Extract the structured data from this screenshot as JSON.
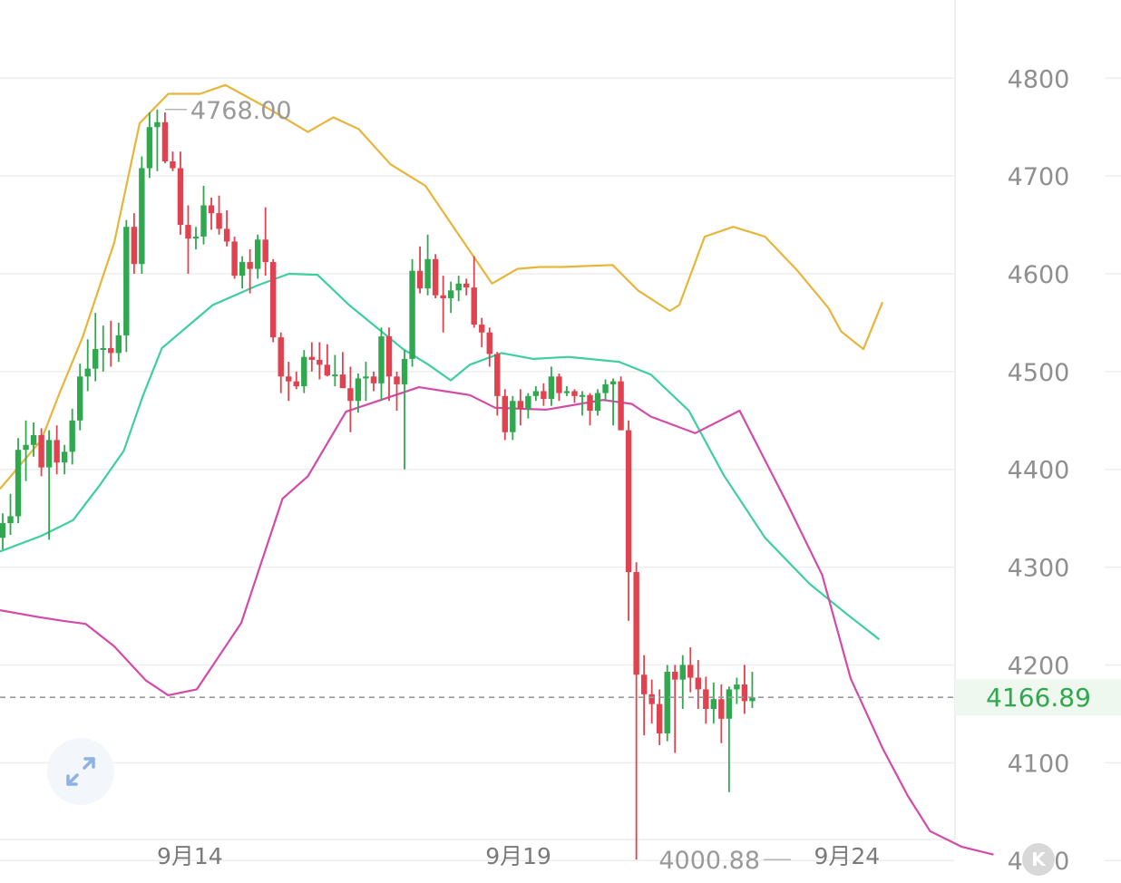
{
  "chart_data": {
    "type": "candlestick",
    "y_ticks": [
      "4800",
      "4700",
      "4600",
      "4500",
      "4400",
      "4300",
      "4200",
      "4100",
      "4000"
    ],
    "y_tick_values": [
      4800,
      4700,
      4600,
      4500,
      4400,
      4300,
      4200,
      4100,
      4000
    ],
    "ylim": [
      3977,
      4880
    ],
    "x_labels": [
      {
        "label": "9月14",
        "index": 26
      },
      {
        "label": "9月19",
        "index": 71
      },
      {
        "label": "9月24",
        "index": 116
      }
    ],
    "high_annotation": {
      "label": "4768.00",
      "value": 4768.0,
      "index": 21
    },
    "low_annotation": {
      "label": "4000.88",
      "value": 4000.88,
      "index": 102
    },
    "current_price": {
      "label": "4166.89",
      "value": 4166.89
    },
    "grid": true,
    "colors": {
      "up": "#2fa84f",
      "down": "#e0424f",
      "upper_band": "#e7b53a",
      "middle_band": "#3ccf9f",
      "lower_band": "#d44aa8",
      "price_line": "#9a9a9a",
      "grid": "#eeeeee"
    },
    "candles": [
      [
        4330,
        4355,
        4318,
        4345
      ],
      [
        4345,
        4375,
        4333,
        4352
      ],
      [
        4352,
        4432,
        4345,
        4420
      ],
      [
        4420,
        4450,
        4388,
        4425
      ],
      [
        4425,
        4448,
        4413,
        4435
      ],
      [
        4435,
        4442,
        4393,
        4402
      ],
      [
        4402,
        4440,
        4328,
        4430
      ],
      [
        4430,
        4445,
        4395,
        4407
      ],
      [
        4407,
        4425,
        4395,
        4418
      ],
      [
        4418,
        4462,
        4405,
        4450
      ],
      [
        4450,
        4508,
        4440,
        4495
      ],
      [
        4495,
        4533,
        4480,
        4503
      ],
      [
        4503,
        4560,
        4490,
        4523
      ],
      [
        4523,
        4547,
        4500,
        4524
      ],
      [
        4524,
        4552,
        4505,
        4519
      ],
      [
        4519,
        4550,
        4510,
        4537
      ],
      [
        4537,
        4655,
        4520,
        4648
      ],
      [
        4648,
        4662,
        4600,
        4610
      ],
      [
        4610,
        4720,
        4600,
        4708
      ],
      [
        4708,
        4765,
        4698,
        4750
      ],
      [
        4750,
        4768,
        4705,
        4755
      ],
      [
        4755,
        4765,
        4713,
        4715
      ],
      [
        4715,
        4725,
        4705,
        4708
      ],
      [
        4708,
        4725,
        4640,
        4650
      ],
      [
        4650,
        4670,
        4600,
        4636
      ],
      [
        4636,
        4648,
        4625,
        4638
      ],
      [
        4638,
        4690,
        4630,
        4670
      ],
      [
        4670,
        4678,
        4645,
        4662
      ],
      [
        4662,
        4680,
        4640,
        4646
      ],
      [
        4646,
        4665,
        4628,
        4633
      ],
      [
        4633,
        4638,
        4595,
        4598
      ],
      [
        4598,
        4618,
        4585,
        4612
      ],
      [
        4612,
        4625,
        4580,
        4605
      ],
      [
        4605,
        4640,
        4595,
        4635
      ],
      [
        4635,
        4668,
        4598,
        4612
      ],
      [
        4612,
        4615,
        4530,
        4535
      ],
      [
        4535,
        4540,
        4478,
        4495
      ],
      [
        4495,
        4510,
        4470,
        4490
      ],
      [
        4490,
        4500,
        4482,
        4485
      ],
      [
        4485,
        4522,
        4478,
        4515
      ],
      [
        4515,
        4530,
        4500,
        4512
      ],
      [
        4512,
        4530,
        4492,
        4507
      ],
      [
        4507,
        4528,
        4495,
        4496
      ],
      [
        4496,
        4517,
        4485,
        4497
      ],
      [
        4497,
        4520,
        4485,
        4483
      ],
      [
        4483,
        4505,
        4438,
        4470
      ],
      [
        4470,
        4498,
        4458,
        4493
      ],
      [
        4493,
        4510,
        4470,
        4495
      ],
      [
        4495,
        4500,
        4480,
        4488
      ],
      [
        4488,
        4545,
        4470,
        4536
      ],
      [
        4536,
        4545,
        4470,
        4495
      ],
      [
        4495,
        4500,
        4460,
        4487
      ],
      [
        4487,
        4522,
        4400,
        4513
      ],
      [
        4513,
        4615,
        4505,
        4603
      ],
      [
        4603,
        4628,
        4580,
        4585
      ],
      [
        4585,
        4640,
        4578,
        4615
      ],
      [
        4615,
        4620,
        4575,
        4578
      ],
      [
        4578,
        4598,
        4540,
        4575
      ],
      [
        4575,
        4592,
        4560,
        4583
      ],
      [
        4583,
        4598,
        4572,
        4590
      ],
      [
        4590,
        4595,
        4578,
        4586
      ],
      [
        4586,
        4618,
        4545,
        4548
      ],
      [
        4548,
        4555,
        4525,
        4540
      ],
      [
        4540,
        4545,
        4505,
        4518
      ],
      [
        4518,
        4520,
        4455,
        4475
      ],
      [
        4475,
        4482,
        4430,
        4438
      ],
      [
        4438,
        4475,
        4430,
        4470
      ],
      [
        4470,
        4482,
        4445,
        4462
      ],
      [
        4462,
        4478,
        4452,
        4475
      ],
      [
        4475,
        4485,
        4470,
        4480
      ],
      [
        4480,
        4488,
        4465,
        4472
      ],
      [
        4472,
        4505,
        4465,
        4495
      ],
      [
        4495,
        4498,
        4470,
        4478
      ],
      [
        4478,
        4485,
        4475,
        4480
      ],
      [
        4480,
        4482,
        4468,
        4475
      ],
      [
        4475,
        4480,
        4455,
        4476
      ],
      [
        4476,
        4478,
        4445,
        4460
      ],
      [
        4460,
        4482,
        4455,
        4478
      ],
      [
        4478,
        4492,
        4470,
        4487
      ],
      [
        4487,
        4493,
        4445,
        4490
      ],
      [
        4490,
        4495,
        4440,
        4440
      ],
      [
        4440,
        4450,
        4245,
        4295
      ],
      [
        4295,
        4305,
        4000.88,
        4190
      ],
      [
        4190,
        4210,
        4128,
        4170
      ],
      [
        4170,
        4185,
        4140,
        4160
      ],
      [
        4160,
        4175,
        4118,
        4130
      ],
      [
        4130,
        4200,
        4122,
        4193
      ],
      [
        4193,
        4200,
        4110,
        4185
      ],
      [
        4185,
        4210,
        4155,
        4200
      ],
      [
        4200,
        4218,
        4172,
        4187
      ],
      [
        4187,
        4205,
        4155,
        4175
      ],
      [
        4175,
        4188,
        4140,
        4155
      ],
      [
        4155,
        4182,
        4140,
        4165
      ],
      [
        4165,
        4180,
        4120,
        4145
      ],
      [
        4145,
        4178,
        4070,
        4175
      ],
      [
        4175,
        4187,
        4160,
        4180
      ],
      [
        4180,
        4200,
        4150,
        4163
      ],
      [
        4163,
        4193,
        4156,
        4166.89
      ]
    ],
    "bollinger": {
      "upper": [
        [
          0,
          4380
        ],
        [
          13,
          4430
        ],
        [
          19,
          4480
        ],
        [
          26,
          4535
        ],
        [
          36,
          4632
        ],
        [
          44,
          4754
        ],
        [
          53,
          4784
        ],
        [
          63,
          4784
        ],
        [
          71,
          4793
        ],
        [
          84,
          4770
        ],
        [
          97,
          4745
        ],
        [
          105,
          4760
        ],
        [
          113,
          4748
        ],
        [
          123,
          4712
        ],
        [
          134,
          4690
        ],
        [
          147,
          4628
        ],
        [
          155,
          4590
        ],
        [
          163,
          4605
        ],
        [
          170,
          4607
        ],
        [
          177,
          4607
        ],
        [
          193,
          4609
        ],
        [
          201,
          4583
        ],
        [
          211,
          4562
        ],
        [
          214,
          4568
        ],
        [
          222,
          4638
        ],
        [
          231,
          4648
        ],
        [
          241,
          4638
        ],
        [
          251,
          4604
        ],
        [
          261,
          4565
        ],
        [
          265,
          4541
        ],
        [
          272,
          4523
        ],
        [
          278,
          4571
        ]
      ],
      "middle": [
        [
          0,
          4316
        ],
        [
          13,
          4332
        ],
        [
          23,
          4348
        ],
        [
          31,
          4382
        ],
        [
          39,
          4419
        ],
        [
          45,
          4475
        ],
        [
          51,
          4524
        ],
        [
          67,
          4568
        ],
        [
          81,
          4588
        ],
        [
          91,
          4600
        ],
        [
          100,
          4599
        ],
        [
          110,
          4568
        ],
        [
          127,
          4523
        ],
        [
          135,
          4507
        ],
        [
          142,
          4491
        ],
        [
          148,
          4507
        ],
        [
          158,
          4519
        ],
        [
          168,
          4513
        ],
        [
          179,
          4515
        ],
        [
          195,
          4510
        ],
        [
          205,
          4497
        ],
        [
          217,
          4460
        ],
        [
          228,
          4394
        ],
        [
          241,
          4330
        ],
        [
          255,
          4283
        ],
        [
          266,
          4254
        ],
        [
          277,
          4226
        ]
      ],
      "lower": [
        [
          0,
          4256
        ],
        [
          12,
          4249
        ],
        [
          20,
          4245
        ],
        [
          27,
          4242
        ],
        [
          36,
          4219
        ],
        [
          46,
          4184
        ],
        [
          53,
          4169
        ],
        [
          62,
          4175
        ],
        [
          76,
          4243
        ],
        [
          89,
          4370
        ],
        [
          97,
          4393
        ],
        [
          109,
          4459
        ],
        [
          132,
          4484
        ],
        [
          148,
          4476
        ],
        [
          156,
          4463
        ],
        [
          172,
          4461
        ],
        [
          190,
          4471
        ],
        [
          199,
          4467
        ],
        [
          205,
          4454
        ],
        [
          219,
          4437
        ],
        [
          233,
          4460
        ],
        [
          248,
          4365
        ],
        [
          259,
          4292
        ],
        [
          268,
          4186
        ],
        [
          278,
          4115
        ],
        [
          286,
          4066
        ],
        [
          293,
          4030
        ],
        [
          303,
          4014
        ],
        [
          313,
          4006
        ]
      ]
    }
  },
  "controls": {
    "expand_icon": "expand-arrows-icon",
    "collapse_icon": "collapse-left-icon",
    "collapse_glyph": "K"
  }
}
